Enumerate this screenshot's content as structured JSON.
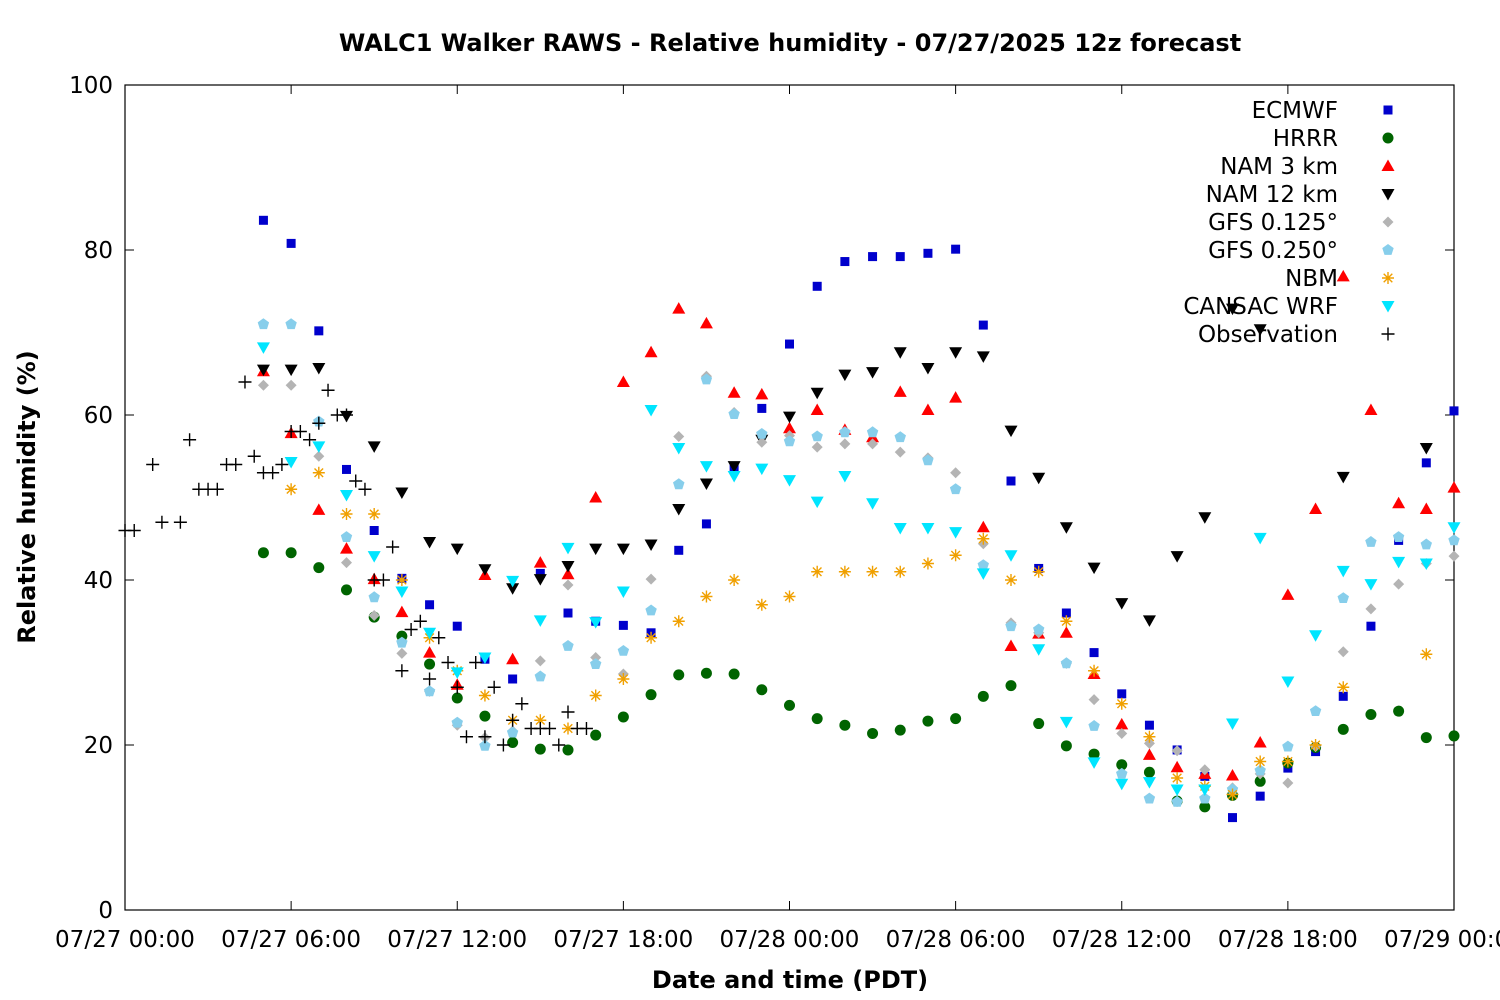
{
  "chart_data": {
    "type": "scatter",
    "title": "WALC1 Walker RAWS - Relative humidity - 07/27/2025 12z forecast",
    "xlabel": "Date and time (PDT)",
    "ylabel": "Relative humidity (%)",
    "xlim": [
      "07/27 00:00",
      "07/29 00:00"
    ],
    "ylim": [
      0,
      100
    ],
    "x_tick_labels": [
      "07/27 00:00",
      "07/27 06:00",
      "07/27 12:00",
      "07/27 18:00",
      "07/28 00:00",
      "07/28 06:00",
      "07/28 12:00",
      "07/28 18:00",
      "07/29 00:00"
    ],
    "y_tick_labels": [
      "0",
      "20",
      "40",
      "60",
      "80",
      "100"
    ],
    "y_ticks": [
      0,
      20,
      40,
      60,
      80,
      100
    ],
    "grid": false,
    "legend_position": "top-right",
    "series": [
      {
        "name": "ECMWF",
        "color": "#0000cc",
        "marker": "square",
        "x": [
          "07/27 05:00",
          "07/27 06:00",
          "07/27 07:00",
          "07/27 08:00",
          "07/27 09:00",
          "07/27 10:00",
          "07/27 11:00",
          "07/27 12:00",
          "07/27 13:00",
          "07/27 14:00",
          "07/27 15:00",
          "07/27 16:00",
          "07/27 17:00",
          "07/27 18:00",
          "07/27 19:00",
          "07/27 20:00",
          "07/27 21:00",
          "07/27 22:00",
          "07/27 23:00",
          "07/28 00:00",
          "07/28 01:00",
          "07/28 02:00",
          "07/28 03:00",
          "07/28 04:00",
          "07/28 05:00",
          "07/28 06:00",
          "07/28 07:00",
          "07/28 08:00",
          "07/28 09:00",
          "07/28 10:00",
          "07/28 11:00",
          "07/28 12:00",
          "07/28 13:00",
          "07/28 14:00",
          "07/28 15:00",
          "07/28 16:00",
          "07/28 17:00",
          "07/28 18:00",
          "07/28 19:00",
          "07/28 20:00",
          "07/28 21:00",
          "07/28 22:00",
          "07/28 23:00",
          "07/29 00:00"
        ],
        "y": [
          83.6,
          80.8,
          70.2,
          53.4,
          46,
          40.2,
          37,
          34.4,
          30.4,
          28,
          40.8,
          36,
          35,
          34.5,
          33.6,
          43.6,
          46.8,
          53.6,
          60.8,
          68.6,
          75.6,
          78.6,
          79.2,
          79.2,
          79.6,
          80.1,
          70.9,
          52,
          41.4,
          36,
          31.2,
          26.2,
          22.4,
          19.4,
          16.2,
          11.2,
          13.8,
          17.2,
          19.2,
          25.9,
          34.4,
          44.8,
          54.2,
          60.5
        ]
      },
      {
        "name": "HRRR",
        "color": "#006400",
        "marker": "circle",
        "x": [
          "07/27 05:00",
          "07/27 06:00",
          "07/27 07:00",
          "07/27 08:00",
          "07/27 09:00",
          "07/27 10:00",
          "07/27 11:00",
          "07/27 12:00",
          "07/27 13:00",
          "07/27 14:00",
          "07/27 15:00",
          "07/27 16:00",
          "07/27 17:00",
          "07/27 18:00",
          "07/27 19:00",
          "07/27 20:00",
          "07/27 21:00",
          "07/27 22:00",
          "07/27 23:00",
          "07/28 00:00",
          "07/28 01:00",
          "07/28 02:00",
          "07/28 03:00",
          "07/28 04:00",
          "07/28 05:00",
          "07/28 06:00",
          "07/28 07:00",
          "07/28 08:00",
          "07/28 09:00",
          "07/28 10:00",
          "07/28 11:00",
          "07/28 12:00",
          "07/28 13:00",
          "07/28 14:00",
          "07/28 15:00",
          "07/28 16:00",
          "07/28 17:00",
          "07/28 18:00",
          "07/28 19:00",
          "07/28 20:00",
          "07/28 21:00",
          "07/28 22:00",
          "07/28 23:00",
          "07/29 00:00"
        ],
        "y": [
          43.3,
          43.3,
          41.5,
          38.8,
          35.5,
          33.2,
          29.8,
          25.7,
          23.5,
          20.3,
          19.5,
          19.4,
          21.2,
          23.4,
          26.1,
          28.5,
          28.7,
          28.6,
          26.7,
          24.8,
          23.2,
          22.4,
          21.4,
          21.8,
          22.9,
          23.2,
          25.9,
          27.2,
          22.6,
          19.9,
          18.9,
          17.6,
          16.7,
          13.2,
          12.5,
          13.9,
          15.6,
          17.8,
          19.7,
          21.9,
          23.7,
          24.1,
          20.9,
          21.1
        ]
      },
      {
        "name": "NAM 3 km",
        "color": "#ff0000",
        "marker": "triangle-up",
        "x": [
          "07/27 05:00",
          "07/27 06:00",
          "07/27 07:00",
          "07/27 08:00",
          "07/27 09:00",
          "07/27 10:00",
          "07/27 11:00",
          "07/27 12:00",
          "07/27 13:00",
          "07/27 14:00",
          "07/27 15:00",
          "07/27 16:00",
          "07/27 17:00",
          "07/27 18:00",
          "07/27 19:00",
          "07/27 20:00",
          "07/27 21:00",
          "07/27 22:00",
          "07/27 23:00",
          "07/28 00:00",
          "07/28 01:00",
          "07/28 02:00",
          "07/28 03:00",
          "07/28 04:00",
          "07/28 05:00",
          "07/28 06:00",
          "07/28 07:00",
          "07/28 08:00",
          "07/28 09:00",
          "07/28 10:00",
          "07/28 11:00",
          "07/28 12:00",
          "07/28 13:00",
          "07/28 14:00",
          "07/28 15:00",
          "07/28 16:00",
          "07/28 17:00",
          "07/28 18:00",
          "07/28 19:00",
          "07/28 20:00",
          "07/28 21:00",
          "07/28 22:00",
          "07/28 23:00",
          "07/29 00:00"
        ],
        "y": [
          65.3,
          57.8,
          48.5,
          43.8,
          40.1,
          36.1,
          31.2,
          27.3,
          40.6,
          30.4,
          42.1,
          40.7,
          50,
          64,
          67.6,
          72.9,
          71.1,
          62.7,
          62.5,
          58.4,
          60.6,
          58.2,
          57.3,
          62.8,
          60.6,
          62.1,
          46.4,
          32,
          33.5,
          33.6,
          28.6,
          22.5,
          18.8,
          17.3,
          16.5,
          16.3,
          20.3,
          38.2,
          48.6,
          76.8,
          60.6,
          49.3,
          48.6,
          51.2
        ]
      },
      {
        "name": "NAM 12 km",
        "color": "#000000",
        "marker": "triangle-down",
        "x": [
          "07/27 05:00",
          "07/27 06:00",
          "07/27 07:00",
          "07/27 08:00",
          "07/27 09:00",
          "07/27 10:00",
          "07/27 11:00",
          "07/27 12:00",
          "07/27 13:00",
          "07/27 14:00",
          "07/27 15:00",
          "07/27 16:00",
          "07/27 17:00",
          "07/27 18:00",
          "07/27 19:00",
          "07/27 20:00",
          "07/27 21:00",
          "07/27 22:00",
          "07/27 23:00",
          "07/28 00:00",
          "07/28 01:00",
          "07/28 02:00",
          "07/28 03:00",
          "07/28 04:00",
          "07/28 05:00",
          "07/28 06:00",
          "07/28 07:00",
          "07/28 08:00",
          "07/28 09:00",
          "07/28 10:00",
          "07/28 11:00",
          "07/28 12:00",
          "07/28 13:00",
          "07/28 14:00",
          "07/28 15:00",
          "07/28 16:00",
          "07/28 17:00",
          "07/28 18:00",
          "07/28 19:00",
          "07/28 20:00",
          "07/28 21:00",
          "07/28 22:00",
          "07/28 23:00",
          "07/29 00:00"
        ],
        "y": [
          65.5,
          65.5,
          65.7,
          59.9,
          56.2,
          50.6,
          44.6,
          43.8,
          41.3,
          39,
          40.1,
          41.7,
          43.8,
          43.8,
          44.3,
          48.6,
          51.7,
          53.8,
          57,
          59.8,
          62.7,
          64.9,
          65.2,
          67.6,
          65.7,
          67.6,
          67.1,
          58.1,
          52.4,
          46.4,
          41.5,
          37.2,
          35.1,
          42.9,
          47.6,
          72.9,
          70.4,
          null,
          null,
          52.5,
          null,
          null,
          56,
          null
        ]
      },
      {
        "name": "GFS 0.125°",
        "color": "#b4b4b4",
        "marker": "diamond",
        "x": [
          "07/27 05:00",
          "07/27 06:00",
          "07/27 07:00",
          "07/27 08:00",
          "07/27 09:00",
          "07/27 10:00",
          "07/27 11:00",
          "07/27 12:00",
          "07/27 13:00",
          "07/27 14:00",
          "07/27 15:00",
          "07/27 16:00",
          "07/27 17:00",
          "07/27 18:00",
          "07/27 19:00",
          "07/27 20:00",
          "07/27 21:00",
          "07/27 22:00",
          "07/27 23:00",
          "07/28 00:00",
          "07/28 01:00",
          "07/28 02:00",
          "07/28 03:00",
          "07/28 04:00",
          "07/28 05:00",
          "07/28 06:00",
          "07/28 07:00",
          "07/28 08:00",
          "07/28 09:00",
          "07/28 10:00",
          "07/28 11:00",
          "07/28 12:00",
          "07/28 13:00",
          "07/28 14:00",
          "07/28 15:00",
          "07/28 16:00",
          "07/28 17:00",
          "07/28 18:00",
          "07/28 19:00",
          "07/28 20:00",
          "07/28 21:00",
          "07/28 22:00",
          "07/28 23:00",
          "07/29 00:00"
        ],
        "y": [
          63.6,
          63.6,
          55,
          42.1,
          35.7,
          31.1,
          26.5,
          22.4,
          20.9,
          21.7,
          30.2,
          39.4,
          30.6,
          28.6,
          40.1,
          57.4,
          64.7,
          60.3,
          56.7,
          57.5,
          56.1,
          56.5,
          56.5,
          55.5,
          54.8,
          53,
          44.4,
          34.8,
          33.6,
          29.9,
          25.5,
          21.4,
          20.2,
          19.3,
          17,
          14.8,
          16.5,
          15.4,
          19.8,
          31.3,
          36.5,
          39.5,
          42,
          42.9
        ]
      },
      {
        "name": "GFS 0.250°",
        "color": "#87ceeb",
        "marker": "pentagon",
        "x": [
          "07/27 05:00",
          "07/27 06:00",
          "07/27 07:00",
          "07/27 08:00",
          "07/27 09:00",
          "07/27 10:00",
          "07/27 11:00",
          "07/27 12:00",
          "07/27 13:00",
          "07/27 14:00",
          "07/27 15:00",
          "07/27 16:00",
          "07/27 17:00",
          "07/27 18:00",
          "07/27 19:00",
          "07/27 20:00",
          "07/27 21:00",
          "07/27 22:00",
          "07/27 23:00",
          "07/28 00:00",
          "07/28 01:00",
          "07/28 02:00",
          "07/28 03:00",
          "07/28 04:00",
          "07/28 05:00",
          "07/28 06:00",
          "07/28 07:00",
          "07/28 08:00",
          "07/28 09:00",
          "07/28 10:00",
          "07/28 11:00",
          "07/28 12:00",
          "07/28 13:00",
          "07/28 14:00",
          "07/28 15:00",
          "07/28 16:00",
          "07/28 17:00",
          "07/28 18:00",
          "07/28 19:00",
          "07/28 20:00",
          "07/28 21:00",
          "07/28 22:00",
          "07/28 23:00",
          "07/29 00:00"
        ],
        "y": [
          71,
          71,
          59.2,
          45.2,
          37.9,
          32.4,
          26.5,
          22.7,
          19.9,
          21.5,
          28.3,
          32,
          29.8,
          31.4,
          36.3,
          51.6,
          64.3,
          60.1,
          57.7,
          56.8,
          57.4,
          57.9,
          57.9,
          57.3,
          54.5,
          51,
          41.8,
          34.4,
          34,
          29.9,
          22.3,
          16.5,
          13.5,
          13.1,
          13.5,
          14.6,
          16.9,
          19.8,
          24.1,
          37.8,
          44.6,
          45.2,
          44.3,
          44.8
        ]
      },
      {
        "name": "NBM",
        "color": "#f0a000",
        "marker": "star",
        "x": [
          "07/27 06:00",
          "07/27 07:00",
          "07/27 08:00",
          "07/27 09:00",
          "07/27 10:00",
          "07/27 11:00",
          "07/27 12:00",
          "07/27 13:00",
          "07/27 14:00",
          "07/27 15:00",
          "07/27 16:00",
          "07/27 17:00",
          "07/27 18:00",
          "07/27 19:00",
          "07/27 20:00",
          "07/27 21:00",
          "07/27 22:00",
          "07/27 23:00",
          "07/28 00:00",
          "07/28 01:00",
          "07/28 02:00",
          "07/28 03:00",
          "07/28 04:00",
          "07/28 05:00",
          "07/28 06:00",
          "07/28 07:00",
          "07/28 08:00",
          "07/28 09:00",
          "07/28 10:00",
          "07/28 11:00",
          "07/28 12:00",
          "07/28 13:00",
          "07/28 14:00",
          "07/28 15:00",
          "07/28 16:00",
          "07/28 17:00",
          "07/28 18:00",
          "07/28 19:00",
          "07/28 20:00",
          "07/28 21:00",
          "07/28 22:00",
          "07/28 23:00"
        ],
        "y": [
          51,
          53,
          48,
          48,
          40,
          33,
          29,
          26,
          23,
          23,
          22,
          26,
          28,
          33,
          35,
          38,
          40,
          37,
          38,
          41,
          41,
          41,
          41,
          42,
          43,
          45,
          40,
          41,
          35,
          29,
          25,
          21,
          16,
          15,
          14,
          18,
          18,
          20,
          27,
          null,
          null,
          31
        ]
      },
      {
        "name": "CANSAC WRF",
        "color": "#00e5ff",
        "marker": "triangle-down",
        "x": [
          "07/27 05:00",
          "07/27 06:00",
          "07/27 07:00",
          "07/27 08:00",
          "07/27 09:00",
          "07/27 10:00",
          "07/27 11:00",
          "07/27 12:00",
          "07/27 13:00",
          "07/27 14:00",
          "07/27 15:00",
          "07/27 16:00",
          "07/27 17:00",
          "07/27 18:00",
          "07/27 19:00",
          "07/27 20:00",
          "07/27 21:00",
          "07/27 22:00",
          "07/27 23:00",
          "07/28 00:00",
          "07/28 01:00",
          "07/28 02:00",
          "07/28 03:00",
          "07/28 04:00",
          "07/28 05:00",
          "07/28 06:00",
          "07/28 07:00",
          "07/28 08:00",
          "07/28 09:00",
          "07/28 10:00",
          "07/28 11:00",
          "07/28 12:00",
          "07/28 13:00",
          "07/28 14:00",
          "07/28 15:00",
          "07/28 16:00",
          "07/28 17:00",
          "07/28 18:00",
          "07/28 19:00",
          "07/28 20:00",
          "07/28 21:00",
          "07/28 22:00",
          "07/28 23:00",
          "07/29 00:00"
        ],
        "y": [
          68.2,
          54.3,
          56.2,
          50.3,
          42.9,
          38.6,
          33.6,
          28.8,
          30.6,
          39.9,
          35.1,
          43.9,
          34.9,
          38.6,
          60.6,
          56,
          53.8,
          52.6,
          53.5,
          52.1,
          49.5,
          52.6,
          49.3,
          46.3,
          46.3,
          45.8,
          40.8,
          43,
          31.6,
          22.8,
          17.9,
          15.3,
          15.5,
          14.6,
          14.6,
          22.6,
          45.1,
          27.7,
          33.3,
          41.1,
          39.5,
          42.2,
          42,
          46.4
        ]
      },
      {
        "name": "Observation",
        "color": "#000000",
        "marker": "plus",
        "x": [
          "07/27 00:00",
          "07/27 00:20",
          "07/27 01:00",
          "07/27 01:20",
          "07/27 02:00",
          "07/27 02:20",
          "07/27 02:40",
          "07/27 03:00",
          "07/27 03:20",
          "07/27 03:40",
          "07/27 04:00",
          "07/27 04:20",
          "07/27 04:40",
          "07/27 05:00",
          "07/27 05:20",
          "07/27 05:40",
          "07/27 06:00",
          "07/27 06:20",
          "07/27 06:40",
          "07/27 07:00",
          "07/27 07:20",
          "07/27 07:40",
          "07/27 08:00",
          "07/27 08:20",
          "07/27 08:40",
          "07/27 09:00",
          "07/27 09:20",
          "07/27 09:40",
          "07/27 10:00",
          "07/27 10:20",
          "07/27 10:40",
          "07/27 11:00",
          "07/27 11:20",
          "07/27 11:40",
          "07/27 12:00",
          "07/27 12:20",
          "07/27 12:40",
          "07/27 13:00",
          "07/27 13:20",
          "07/27 13:40",
          "07/27 14:00",
          "07/27 14:20",
          "07/27 14:40",
          "07/27 15:00",
          "07/27 15:20",
          "07/27 15:40",
          "07/27 16:00",
          "07/27 16:20",
          "07/27 16:40"
        ],
        "y": [
          46,
          46,
          54,
          47,
          47,
          57,
          51,
          51,
          51,
          54,
          54,
          64,
          55,
          53,
          53,
          54,
          58,
          58,
          57,
          59,
          63,
          60,
          60,
          52,
          51,
          40,
          40,
          44,
          29,
          34,
          35,
          28,
          33,
          30,
          27,
          21,
          30,
          21,
          27,
          20,
          23,
          25,
          22,
          22,
          22,
          20,
          24,
          22,
          22
        ]
      }
    ]
  }
}
